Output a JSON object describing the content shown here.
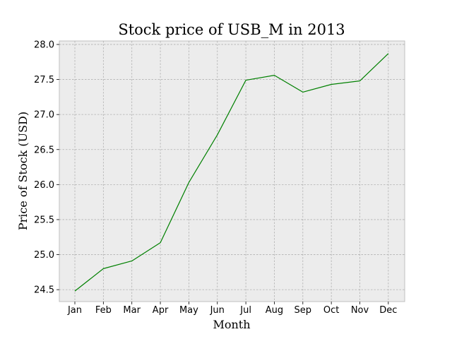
{
  "chart_data": {
    "type": "line",
    "title": "Stock price of USB_M in 2013",
    "xlabel": "Month",
    "ylabel": "Price of Stock (USD)",
    "categories": [
      "Jan",
      "Feb",
      "Mar",
      "Apr",
      "May",
      "Jun",
      "Jul",
      "Aug",
      "Sep",
      "Oct",
      "Nov",
      "Dec"
    ],
    "series": [
      {
        "values": [
          24.48,
          24.8,
          24.91,
          25.17,
          26.03,
          26.71,
          27.49,
          27.56,
          27.32,
          27.43,
          27.48,
          27.87
        ],
        "color": "#008000"
      }
    ],
    "ylim": [
      24.33,
      28.05
    ],
    "yticks": [
      "24.5",
      "25.0",
      "25.5",
      "26.0",
      "26.5",
      "27.0",
      "27.5",
      "28.0"
    ],
    "grid": true,
    "background_color": "#ececec"
  }
}
